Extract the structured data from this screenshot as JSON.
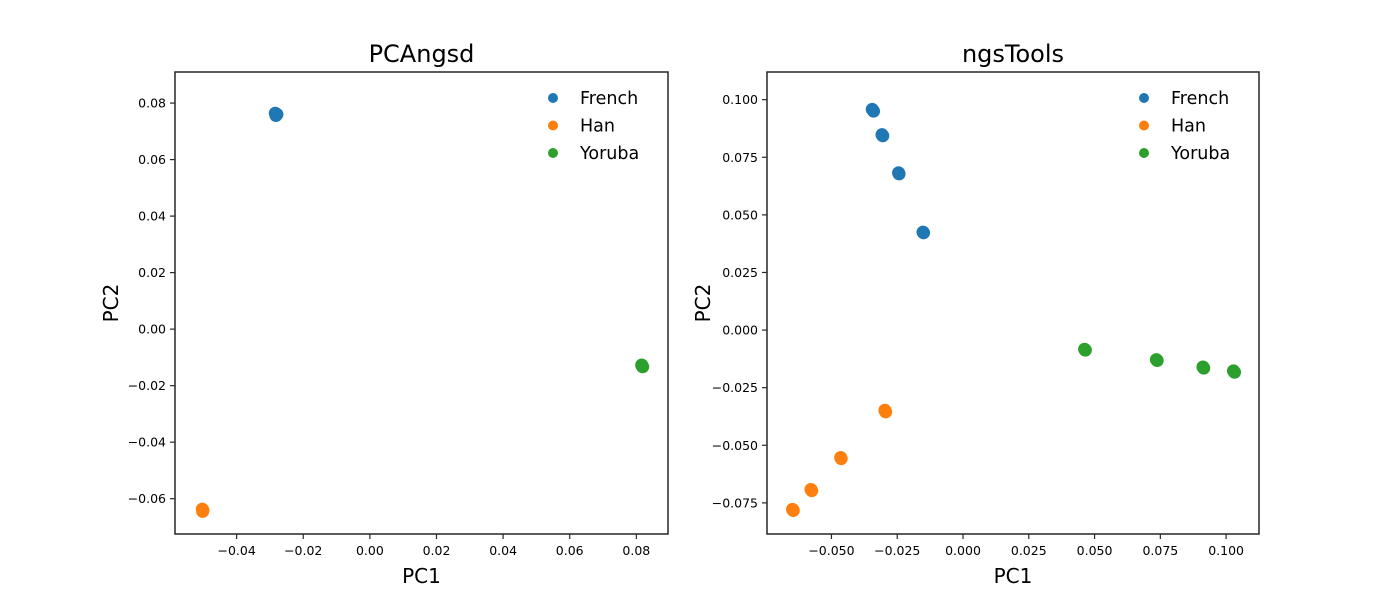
{
  "chart_data": [
    {
      "type": "scatter",
      "title": "PCAngsd",
      "xlabel": "PC1",
      "ylabel": "PC2",
      "xlim": [
        -0.0585,
        0.0895
      ],
      "ylim": [
        -0.0725,
        0.091
      ],
      "xticks": [
        -0.04,
        -0.02,
        0.0,
        0.02,
        0.04,
        0.06,
        0.08
      ],
      "xtick_labels": [
        "−0.04",
        "−0.02",
        "0.00",
        "0.02",
        "0.04",
        "0.06",
        "0.08"
      ],
      "yticks": [
        -0.06,
        -0.04,
        -0.02,
        0.0,
        0.02,
        0.04,
        0.06,
        0.08
      ],
      "ytick_labels": [
        "−0.06",
        "−0.04",
        "−0.02",
        "0.00",
        "0.02",
        "0.04",
        "0.06",
        "0.08"
      ],
      "legend": "top-right",
      "grid": false,
      "series": [
        {
          "name": "French",
          "color": "#1f77b4",
          "points": [
            [
              -0.0284,
              0.0764
            ],
            [
              -0.0282,
              0.0756
            ],
            [
              -0.0279,
              0.076
            ]
          ]
        },
        {
          "name": "Han",
          "color": "#ff7f0e",
          "points": [
            [
              -0.0503,
              -0.0637
            ],
            [
              -0.0502,
              -0.0645
            ],
            [
              -0.0501,
              -0.0641
            ]
          ]
        },
        {
          "name": "Yoruba",
          "color": "#2ca02c",
          "points": [
            [
              0.0816,
              -0.0127
            ],
            [
              0.0819,
              -0.0133
            ],
            [
              0.0817,
              -0.013
            ]
          ]
        }
      ]
    },
    {
      "type": "scatter",
      "title": "ngsTools",
      "xlabel": "PC1",
      "ylabel": "PC2",
      "xlim": [
        -0.0745,
        0.1125
      ],
      "ylim": [
        -0.0885,
        0.112
      ],
      "xticks": [
        -0.05,
        -0.025,
        0.0,
        0.025,
        0.05,
        0.075,
        0.1
      ],
      "xtick_labels": [
        "−0.050",
        "−0.025",
        "0.000",
        "0.025",
        "0.050",
        "0.075",
        "0.100"
      ],
      "yticks": [
        -0.075,
        -0.05,
        -0.025,
        0.0,
        0.025,
        0.05,
        0.075,
        0.1
      ],
      "ytick_labels": [
        "−0.075",
        "−0.050",
        "−0.025",
        "0.000",
        "0.025",
        "0.050",
        "0.075",
        "0.100"
      ],
      "legend": "top-right",
      "grid": false,
      "series": [
        {
          "name": "French",
          "color": "#1f77b4",
          "points": [
            [
              -0.0345,
              0.0958
            ],
            [
              -0.034,
              0.095
            ],
            [
              -0.0308,
              0.0848
            ],
            [
              -0.0305,
              0.0843
            ],
            [
              -0.0245,
              0.0683
            ],
            [
              -0.0243,
              0.0678
            ],
            [
              -0.0152,
              0.0425
            ],
            [
              -0.015,
              0.0422
            ]
          ]
        },
        {
          "name": "Han",
          "color": "#ff7f0e",
          "points": [
            [
              -0.0297,
              -0.0348
            ],
            [
              -0.0294,
              -0.0355
            ],
            [
              -0.0465,
              -0.0553
            ],
            [
              -0.0463,
              -0.0558
            ],
            [
              -0.0578,
              -0.0692
            ],
            [
              -0.0575,
              -0.0697
            ],
            [
              -0.0648,
              -0.0778
            ],
            [
              -0.0645,
              -0.0783
            ]
          ]
        },
        {
          "name": "Yoruba",
          "color": "#2ca02c",
          "points": [
            [
              0.0462,
              -0.0083
            ],
            [
              0.0465,
              -0.0087
            ],
            [
              0.0735,
              -0.0128
            ],
            [
              0.0738,
              -0.0132
            ],
            [
              0.0912,
              -0.016
            ],
            [
              0.0915,
              -0.0165
            ],
            [
              0.1028,
              -0.0177
            ],
            [
              0.1032,
              -0.0183
            ]
          ]
        }
      ]
    }
  ]
}
